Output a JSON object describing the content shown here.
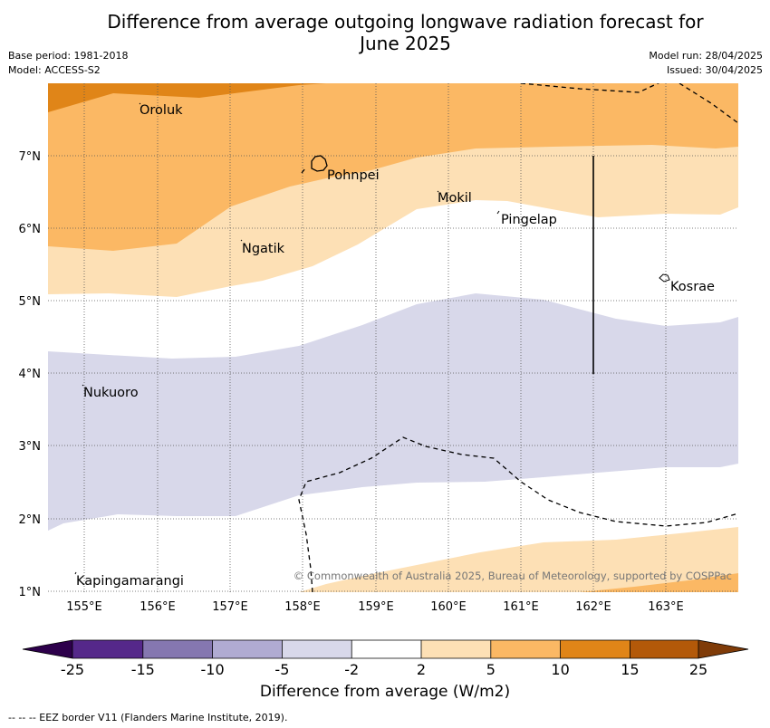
{
  "title_line1": "Difference from average outgoing longwave radiation forecast for",
  "title_line2": "June 2025",
  "meta": {
    "base_period": "Base period: 1981-2018",
    "model": "Model: ACCESS-S2",
    "model_run": "Model run: 28/04/2025",
    "issued": "Issued: 30/04/2025"
  },
  "map": {
    "lon_labels": [
      "155°E",
      "156°E",
      "157°E",
      "158°E",
      "159°E",
      "160°E",
      "161°E",
      "162°E",
      "163°E"
    ],
    "lat_labels": [
      "7°N",
      "6°N",
      "5°N",
      "4°N",
      "3°N",
      "2°N",
      "1°N"
    ],
    "places": {
      "oroluk": "Oroluk",
      "pohnpei": "Pohnpei",
      "mokil": "Mokil",
      "pingelap": "Pingelap",
      "ngatik": "Ngatik",
      "kosrae": "Kosrae",
      "nukuoro": "Nukuoro",
      "kapingamarangi": "Kapingamarangi"
    },
    "copyright": "© Commonwealth of Australia 2025, Bureau of Meteorology, supported by COSPPac"
  },
  "colorbar": {
    "ticks": [
      "-25",
      "-15",
      "-10",
      "-5",
      "-2",
      "2",
      "5",
      "10",
      "15",
      "25"
    ],
    "colors": [
      "#55288a",
      "#8577b0",
      "#b0abd2",
      "#d8d8ea",
      "#ffffff",
      "#fde0b5",
      "#fbb864",
      "#e08518",
      "#b35909"
    ],
    "extend_low": "#2d004b",
    "extend_high": "#7f3b08",
    "label": "Difference from average (W/m2)"
  },
  "footnote": "--  --  -- EEZ border V11 (Flanders Marine Institute, 2019)."
}
